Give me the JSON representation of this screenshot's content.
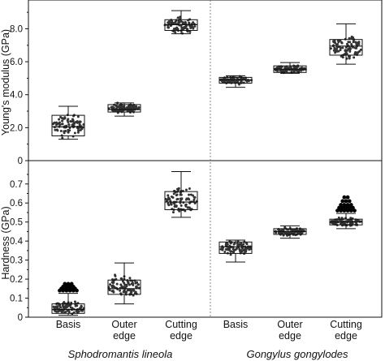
{
  "chart_data": [
    {
      "type": "box",
      "panel": "top",
      "ylabel": "Young's modulus (GPa)",
      "ylim": [
        0,
        9.5
      ],
      "yticks": [
        0,
        2.0,
        4.0,
        6.0,
        8.0
      ],
      "ytick_labels": [
        "0",
        "2.0",
        "4.0",
        "6.0",
        "8.0"
      ],
      "grid": false,
      "groups": [
        {
          "name": "Sphodromantis lineola",
          "categories": [
            "Basis",
            "Outer edge",
            "Cutting edge"
          ]
        },
        {
          "name": "Gongylus gongylodes",
          "categories": [
            "Basis",
            "Outer edge",
            "Cutting edge"
          ]
        }
      ],
      "series": [
        {
          "group": "Sphodromantis lineola",
          "category": "Basis",
          "min": 1.3,
          "q1": 1.5,
          "median": 2.05,
          "q3": 2.75,
          "max": 3.3,
          "points_min": 1.3,
          "points_max": 3.3
        },
        {
          "group": "Sphodromantis lineola",
          "category": "Outer edge",
          "min": 2.7,
          "q1": 2.95,
          "median": 3.1,
          "q3": 3.4,
          "max": 3.5,
          "points_min": 2.7,
          "points_max": 3.5
        },
        {
          "group": "Sphodromantis lineola",
          "category": "Cutting edge",
          "min": 7.7,
          "q1": 7.9,
          "median": 8.25,
          "q3": 8.55,
          "max": 9.1,
          "points_min": 7.7,
          "points_max": 9.1
        },
        {
          "group": "Gongylus gongylodes",
          "category": "Basis",
          "min": 4.45,
          "q1": 4.7,
          "median": 4.9,
          "q3": 5.05,
          "max": 5.15,
          "points_min": 4.45,
          "points_max": 5.15
        },
        {
          "group": "Gongylus gongylodes",
          "category": "Outer edge",
          "min": 5.3,
          "q1": 5.35,
          "median": 5.55,
          "q3": 5.75,
          "max": 5.95,
          "points_min": 5.3,
          "points_max": 5.95
        },
        {
          "group": "Gongylus gongylodes",
          "category": "Cutting edge",
          "min": 5.85,
          "q1": 6.4,
          "median": 6.95,
          "q3": 7.35,
          "max": 8.3,
          "points_min": 5.85,
          "points_max": 8.3
        }
      ]
    },
    {
      "type": "box",
      "panel": "bottom",
      "ylabel": "Hardness (GPa)",
      "ylim": [
        0,
        0.78
      ],
      "yticks": [
        0,
        0.1,
        0.2,
        0.3,
        0.4,
        0.5,
        0.6,
        0.7
      ],
      "ytick_labels": [
        "0",
        "0.1",
        "0.2",
        "0.3",
        "0.4",
        "0.5",
        "0.6",
        "0.7"
      ],
      "grid": false,
      "series": [
        {
          "group": "Sphodromantis lineola",
          "category": "Basis",
          "min": 0.01,
          "q1": 0.02,
          "median": 0.04,
          "q3": 0.07,
          "max": 0.125,
          "points_min": 0.0,
          "points_max": 0.13,
          "outliers": [
            0.14,
            0.15,
            0.16,
            0.175
          ]
        },
        {
          "group": "Sphodromantis lineola",
          "category": "Outer edge",
          "min": 0.07,
          "q1": 0.12,
          "median": 0.15,
          "q3": 0.195,
          "max": 0.285,
          "points_min": 0.07,
          "points_max": 0.285
        },
        {
          "group": "Sphodromantis lineola",
          "category": "Cutting edge",
          "min": 0.525,
          "q1": 0.565,
          "median": 0.605,
          "q3": 0.66,
          "max": 0.765,
          "points_min": 0.525,
          "points_max": 0.765
        },
        {
          "group": "Gongylus gongylodes",
          "category": "Basis",
          "min": 0.29,
          "q1": 0.335,
          "median": 0.37,
          "q3": 0.395,
          "max": 0.405,
          "points_min": 0.29,
          "points_max": 0.405
        },
        {
          "group": "Gongylus gongylodes",
          "category": "Outer edge",
          "min": 0.415,
          "q1": 0.435,
          "median": 0.45,
          "q3": 0.465,
          "max": 0.48,
          "points_min": 0.415,
          "points_max": 0.48
        },
        {
          "group": "Gongylus gongylodes",
          "category": "Cutting edge",
          "min": 0.465,
          "q1": 0.485,
          "median": 0.5,
          "q3": 0.515,
          "max": 0.545,
          "points_min": 0.465,
          "points_max": 0.545,
          "outliers": [
            0.56,
            0.575,
            0.59,
            0.61,
            0.63
          ]
        }
      ]
    }
  ],
  "x_axis": {
    "categories": [
      "Basis",
      "Outer\nedge",
      "Cutting\nedge",
      "Basis",
      "Outer\nedge",
      "Cutting\nedge"
    ],
    "group_labels": [
      "Sphodromantis lineola",
      "Gongylus gongylodes"
    ]
  },
  "colors": {
    "box_stroke": "#111111",
    "point": "#333333",
    "outlier": "#000000",
    "divider": "#666666"
  }
}
